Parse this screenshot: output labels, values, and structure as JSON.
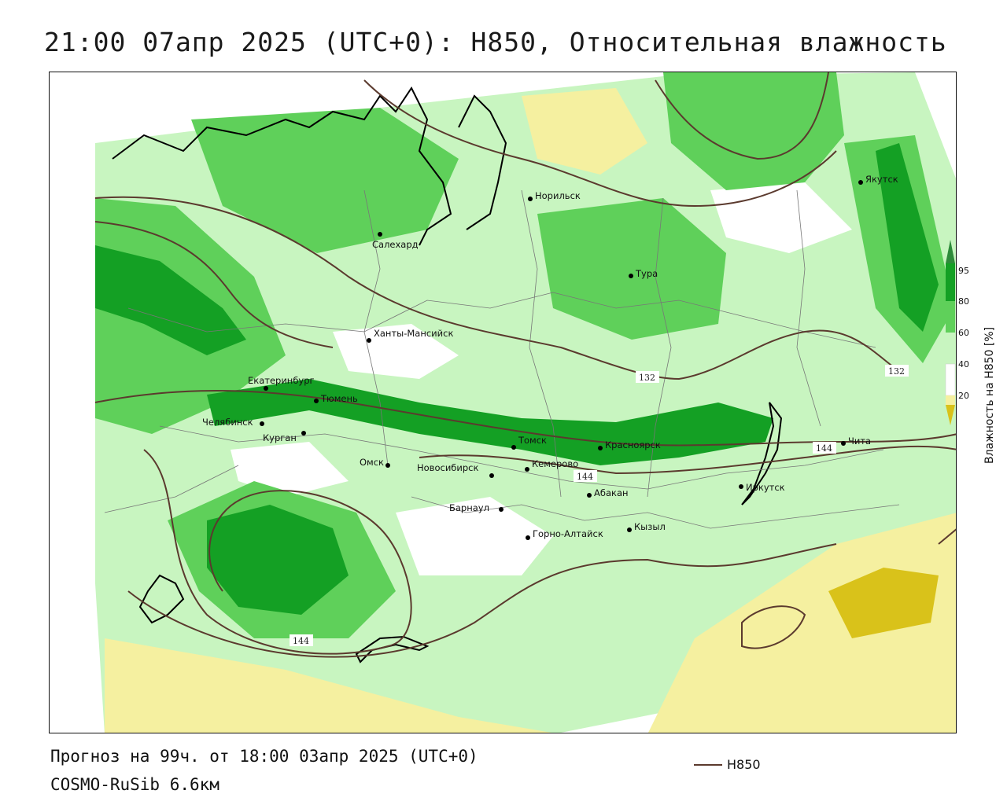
{
  "title": "21:00 07апр 2025 (UTC+0): H850, Относительная влажность",
  "footer": {
    "forecast": "Прогноз на 99ч. от 18:00 03апр 2025 (UTC+0)",
    "model": "COSMO-RuSib 6.6км"
  },
  "legend": {
    "line_label": "H850",
    "line_color": "#5b3a2e"
  },
  "colorbar": {
    "title": "Влажность на H850 [%]",
    "ticks": [
      "95",
      "80",
      "60",
      "40",
      "20"
    ],
    "colors": {
      "95_plus": "#2e8b3a",
      "80_95": "#14a024",
      "60_80": "#5fd05a",
      "40_60": "#c8f5c0",
      "20_40": "#ffffff",
      "0_20": "#f5f0a0",
      "below": "#d9c21a"
    }
  },
  "cities": [
    {
      "name": "Норильск"
    },
    {
      "name": "Якутск"
    },
    {
      "name": "Салехард"
    },
    {
      "name": "Тура"
    },
    {
      "name": "Ханты-Мансийск"
    },
    {
      "name": "Екатеринбург"
    },
    {
      "name": "Тюмень"
    },
    {
      "name": "Челябинск"
    },
    {
      "name": "Курган"
    },
    {
      "name": "Омск"
    },
    {
      "name": "Новосибирск"
    },
    {
      "name": "Томск"
    },
    {
      "name": "Красноярск"
    },
    {
      "name": "Кемерово"
    },
    {
      "name": "Абакан"
    },
    {
      "name": "Барнаул"
    },
    {
      "name": "Горно-Алтайск"
    },
    {
      "name": "Кызыл"
    },
    {
      "name": "Иркутск"
    },
    {
      "name": "Чита"
    }
  ],
  "isolines": [
    "132",
    "132",
    "144",
    "144",
    "144"
  ]
}
